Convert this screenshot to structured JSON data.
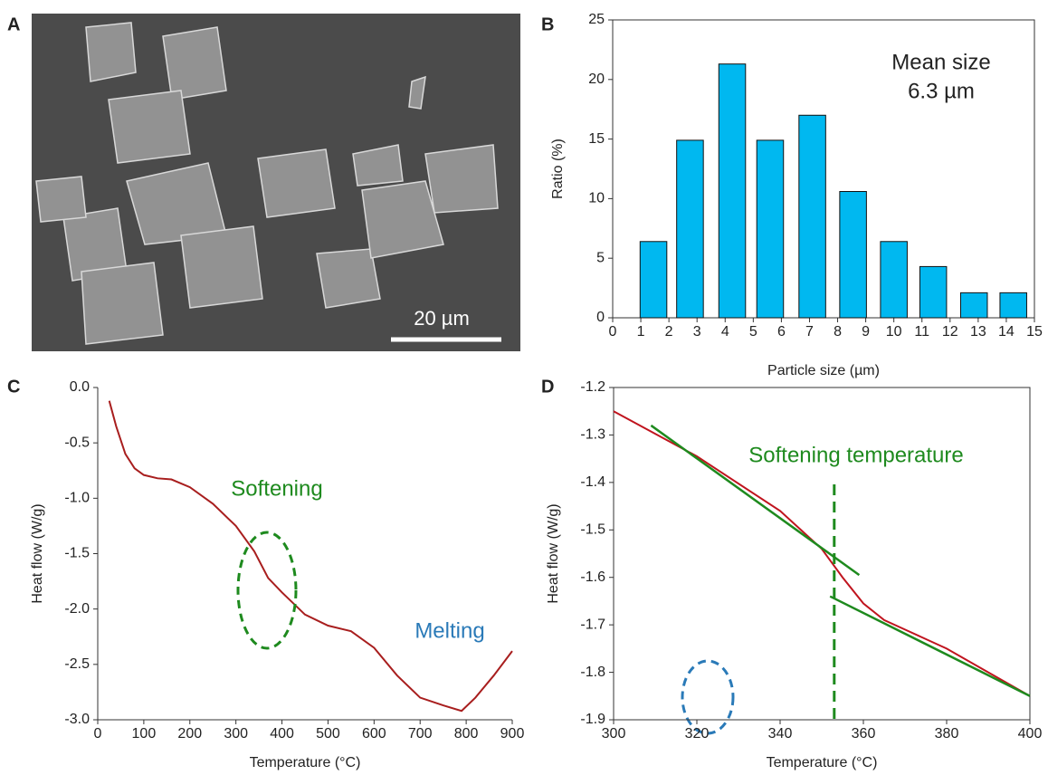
{
  "image_panel": {
    "panel_label": "A",
    "scale_bar": "20 µm"
  },
  "chart_data": [
    {
      "type": "bar",
      "panel_label": "B",
      "x_label": "Particle size (µm)",
      "y_label": "Ratio (%)",
      "annotation": [
        "Mean size",
        "6.3 µm"
      ],
      "x": [
        1.45,
        2.75,
        4.25,
        5.6,
        7.1,
        8.55,
        10,
        11.4,
        12.85,
        14.25
      ],
      "values": [
        6.4,
        14.9,
        21.3,
        14.9,
        17,
        10.6,
        6.4,
        4.3,
        2.1,
        2.1
      ],
      "color": "#00b8f0",
      "xlim": [
        0,
        15
      ],
      "ylim": [
        0,
        25
      ],
      "xticks": [
        0,
        1,
        2,
        3,
        4,
        5,
        6,
        7,
        8,
        9,
        10,
        11,
        12,
        13,
        14,
        15
      ],
      "yticks": [
        0,
        5,
        10,
        15,
        20,
        25
      ]
    },
    {
      "type": "line",
      "panel_label": "C",
      "x_label": "Temperature (°C)",
      "y_label": "Heat flow (W/g)",
      "annotations": [
        {
          "text": "Softening",
          "color": "#1e8a1e"
        },
        {
          "text": "Melting",
          "color": "#2a7ab8"
        }
      ],
      "series": [
        {
          "color": "#a81e1e",
          "x": [
            25,
            40,
            60,
            80,
            100,
            130,
            160,
            200,
            250,
            300,
            340,
            370,
            400,
            450,
            500,
            550,
            600,
            650,
            700,
            750,
            790,
            820,
            860,
            900
          ],
          "values": [
            -0.12,
            -0.35,
            -0.6,
            -0.73,
            -0.79,
            -0.82,
            -0.83,
            -0.9,
            -1.05,
            -1.25,
            -1.48,
            -1.72,
            -1.85,
            -2.05,
            -2.15,
            -2.2,
            -2.35,
            -2.6,
            -2.8,
            -2.87,
            -2.92,
            -2.8,
            -2.6,
            -2.38
          ]
        }
      ],
      "xlim": [
        0,
        900
      ],
      "ylim": [
        -3,
        0
      ],
      "xticks": [
        0,
        100,
        200,
        300,
        400,
        500,
        600,
        700,
        800,
        900
      ],
      "yticks": [
        {
          "value": -3,
          "label": "-3.0"
        },
        -2.5,
        {
          "value": -2,
          "label": "-2.0"
        },
        -1.5,
        {
          "value": -1,
          "label": "-1.0"
        },
        -0.5,
        {
          "value": 0,
          "label": "0.0"
        }
      ]
    },
    {
      "type": "line",
      "panel_label": "D",
      "x_label": "Temperature (°C)",
      "y_label": "Heat flow (W/g)",
      "annotation": "Softening temperature",
      "annotation_color": "#1e8a1e",
      "series": [
        {
          "color": "#c0141e",
          "x": [
            300,
            320,
            340,
            350,
            355,
            360,
            365,
            370,
            380,
            390,
            400
          ],
          "values": [
            -1.25,
            -1.345,
            -1.46,
            -1.54,
            -1.6,
            -1.655,
            -1.69,
            -1.71,
            -1.75,
            -1.8,
            -1.85
          ]
        },
        {
          "color": "#1e8a1e",
          "x": [
            309,
            359
          ],
          "values": [
            -1.28,
            -1.595
          ]
        },
        {
          "color": "#1e8a1e",
          "x": [
            352,
            400
          ],
          "values": [
            -1.64,
            -1.85
          ]
        }
      ],
      "softening_x": 353,
      "xlim": [
        300,
        400
      ],
      "ylim": [
        -1.9,
        -1.2
      ],
      "xticks": [
        300,
        320,
        340,
        360,
        380,
        400
      ],
      "yticks": [
        -1.9,
        -1.8,
        -1.7,
        -1.6,
        -1.5,
        -1.4,
        -1.3,
        -1.2
      ]
    }
  ]
}
